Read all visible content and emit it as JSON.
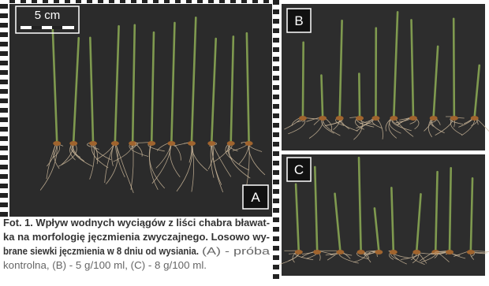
{
  "figure": {
    "scale_bar": "5 cm",
    "panel_labels": [
      "A",
      "B",
      "C"
    ],
    "caption": {
      "lines": [
        "Fot. 1. Wpływ wodnych wyciągów  z liści chabra bławat-",
        "ka na morfologię jęczmienia zwyczajnego. Losowo wy-",
        "brane siewki jęczmienia w 8 dniu od wysiania."
      ],
      "light_lines": [
        "(A) - próba",
        "kontrolna, (B) - 5 g/100 ml, (C) - 8 g/100 ml."
      ]
    }
  }
}
